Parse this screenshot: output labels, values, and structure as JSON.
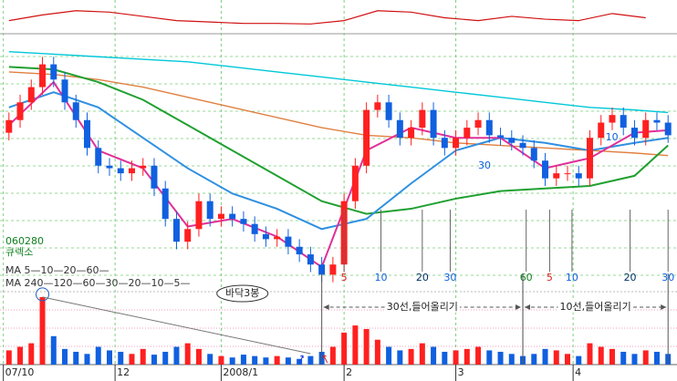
{
  "chart_data": {
    "type": "candlestick",
    "stock_code": "060280",
    "stock_name": "큐렉소",
    "ma_legend": [
      "MA 5—10—20—60—",
      "MA 240—120—60—30—20—10—5—"
    ],
    "xlim": [
      -0.8,
      59.8
    ],
    "xticks": [
      {
        "value": -0.5,
        "label": "07/10"
      },
      {
        "value": 9.5,
        "label": "12"
      },
      {
        "value": 19,
        "label": "2008/1"
      },
      {
        "value": 30,
        "label": "2"
      },
      {
        "value": 40,
        "label": "3"
      },
      {
        "value": 50.5,
        "label": "4"
      }
    ],
    "ylim": [
      0,
      100
    ],
    "up_color": "#ff2020",
    "down_color": "#1060e0",
    "open": [
      62,
      67,
      74,
      80,
      89,
      83,
      74,
      67,
      56,
      49,
      48,
      46,
      48,
      49,
      40,
      28,
      19,
      24,
      35,
      28,
      30,
      28,
      26,
      22,
      20,
      21,
      17,
      14,
      10,
      6,
      10,
      35,
      49,
      71,
      74,
      67,
      60,
      64,
      71,
      60,
      56,
      60,
      64,
      67,
      61,
      60,
      58,
      56,
      51,
      44,
      46,
      46,
      44,
      60,
      66,
      69,
      64,
      60,
      67,
      66
    ],
    "high": [
      70,
      77,
      83,
      92,
      92,
      86,
      77,
      70,
      59,
      52,
      51,
      51,
      52,
      52,
      43,
      31,
      27,
      38,
      38,
      33,
      33,
      31,
      29,
      25,
      24,
      24,
      20,
      17,
      13,
      13,
      38,
      52,
      74,
      77,
      77,
      70,
      67,
      74,
      74,
      63,
      63,
      67,
      70,
      70,
      64,
      63,
      61,
      59,
      54,
      49,
      49,
      49,
      63,
      69,
      72,
      72,
      67,
      70,
      70,
      69
    ],
    "low": [
      59,
      64,
      71,
      77,
      80,
      71,
      64,
      53,
      46,
      45,
      43,
      43,
      45,
      37,
      25,
      16,
      16,
      21,
      25,
      25,
      25,
      23,
      19,
      17,
      17,
      14,
      11,
      7,
      3,
      3,
      7,
      32,
      46,
      68,
      64,
      57,
      57,
      61,
      57,
      53,
      53,
      57,
      61,
      58,
      57,
      55,
      53,
      48,
      41,
      41,
      43,
      41,
      41,
      57,
      63,
      61,
      57,
      57,
      63,
      58
    ],
    "close": [
      67,
      74,
      80,
      89,
      83,
      74,
      67,
      56,
      49,
      48,
      46,
      48,
      49,
      40,
      28,
      19,
      24,
      35,
      28,
      30,
      28,
      26,
      22,
      20,
      21,
      17,
      14,
      10,
      6,
      10,
      35,
      49,
      71,
      74,
      67,
      60,
      64,
      71,
      60,
      56,
      60,
      64,
      67,
      61,
      60,
      58,
      56,
      51,
      44,
      46,
      46,
      44,
      60,
      66,
      69,
      64,
      60,
      67,
      66,
      61
    ],
    "moving_averages": [
      {
        "color": "#00c8d8",
        "x": [
          0,
          4,
          8,
          12,
          16,
          20,
          24,
          28,
          32,
          36,
          40,
          44,
          48,
          52,
          56,
          59
        ],
        "values": [
          94,
          93,
          92,
          91,
          90,
          88,
          86,
          84,
          82,
          80,
          78,
          76,
          74,
          72,
          71,
          70
        ]
      },
      {
        "color": "#e08040",
        "x": [
          0,
          4,
          8,
          12,
          16,
          20,
          24,
          28,
          32,
          36,
          40,
          44,
          48,
          52,
          56,
          59
        ],
        "values": [
          86,
          85,
          83,
          80,
          76,
          72,
          68,
          64,
          61,
          60,
          58,
          57,
          56,
          55,
          54,
          53
        ]
      },
      {
        "color": "#20a030",
        "x": [
          0,
          4,
          8,
          12,
          16,
          20,
          24,
          28,
          32,
          36,
          40,
          44,
          48,
          52,
          56,
          59
        ],
        "values": [
          88,
          87,
          82,
          75,
          65,
          55,
          45,
          35,
          30,
          32,
          36,
          39,
          40,
          41,
          45,
          57
        ]
      },
      {
        "color": "#3090e0",
        "x": [
          0,
          4,
          8,
          12,
          16,
          20,
          24,
          28,
          32,
          36,
          40,
          44,
          48,
          52,
          56,
          59
        ],
        "values": [
          72,
          78,
          72,
          60,
          48,
          38,
          32,
          24,
          28,
          42,
          55,
          60,
          58,
          55,
          58,
          60
        ]
      },
      {
        "color": "#e0309a",
        "x": [
          0,
          4,
          8,
          12,
          16,
          20,
          24,
          28,
          32,
          36,
          40,
          44,
          48,
          52,
          56,
          59
        ],
        "values": [
          65,
          82,
          55,
          48,
          25,
          28,
          21,
          9,
          55,
          64,
          60,
          60,
          48,
          52,
          62,
          63
        ]
      }
    ],
    "volume": {
      "ylim": [
        0,
        100
      ],
      "values": [
        20,
        25,
        30,
        95,
        40,
        22,
        18,
        15,
        25,
        20,
        18,
        15,
        22,
        14,
        18,
        25,
        30,
        22,
        15,
        12,
        10,
        14,
        12,
        10,
        12,
        10,
        8,
        12,
        18,
        25,
        45,
        55,
        50,
        35,
        25,
        20,
        22,
        30,
        25,
        18,
        20,
        22,
        25,
        20,
        18,
        15,
        12,
        15,
        22,
        20,
        15,
        12,
        30,
        25,
        22,
        18,
        15,
        20,
        18,
        15
      ]
    },
    "oscillator": {
      "ylim": [
        0,
        100
      ],
      "color": "#d01010",
      "x": [
        0,
        3,
        6,
        9,
        12,
        15,
        18,
        21,
        24,
        27,
        30,
        33,
        36,
        39,
        42,
        45,
        48,
        51,
        54,
        57
      ],
      "values": [
        40,
        60,
        75,
        70,
        55,
        40,
        35,
        30,
        30,
        28,
        40,
        75,
        70,
        50,
        40,
        55,
        45,
        40,
        65,
        50
      ]
    },
    "annotations": [
      {
        "text": "5",
        "x": 30,
        "color": "#e02020"
      },
      {
        "text": "10",
        "x": 33.3,
        "color": "#1060e0"
      },
      {
        "text": "20",
        "x": 37,
        "color": "#003060"
      },
      {
        "text": "30",
        "x": 39.5,
        "color": "#1060e0"
      },
      {
        "text": "60",
        "x": 46.3,
        "color": "#108020"
      },
      {
        "text": "5",
        "x": 48.4,
        "color": "#e02020"
      },
      {
        "text": "10",
        "x": 50.4,
        "color": "#1060e0"
      },
      {
        "text": "20",
        "x": 55.6,
        "color": "#003060"
      },
      {
        "text": "30",
        "x": 59,
        "color": "#1060e0"
      }
    ],
    "line_labels": [
      {
        "text": "10",
        "x": 53.4,
        "y": 60
      },
      {
        "text": "30",
        "x": 42,
        "y": 49
      }
    ],
    "brackets": [
      {
        "text": "30선,들어올리기",
        "x": [
          28,
          46
        ]
      },
      {
        "text": "10선,들어올리기",
        "x": [
          46,
          59
        ]
      }
    ],
    "callout": {
      "text": "바닥3봉",
      "x": 20.9
    }
  }
}
